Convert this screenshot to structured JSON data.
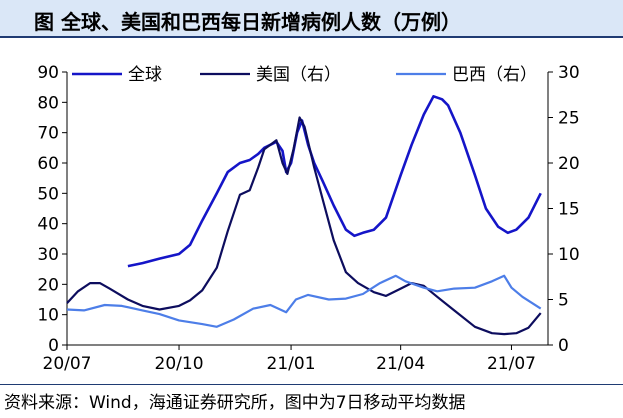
{
  "title": "图  全球、美国和巴西每日新增病例人数（万例）",
  "source": "资料来源：Wind，海通证券研究所，图中为7日移动平均数据",
  "chart_data": {
    "type": "line",
    "title": "全球、美国和巴西每日新增病例人数（万例）",
    "y_left": {
      "ylim": [
        0,
        90
      ],
      "ticks": [
        "0",
        "10",
        "20",
        "30",
        "40",
        "50",
        "60",
        "70",
        "80",
        "90"
      ]
    },
    "y_right": {
      "ylim": [
        0,
        30
      ],
      "ticks": [
        "0",
        "5",
        "10",
        "15",
        "20",
        "25",
        "30"
      ]
    },
    "x_ticks": [
      "20/07",
      "20/10",
      "21/01",
      "21/04",
      "21/07"
    ],
    "x_range": [
      "2020-07-01",
      "2021-07-31"
    ],
    "legend": [
      "全球",
      "美国（右）",
      "巴西（右）"
    ],
    "legend_position": "top",
    "grid": false,
    "series": [
      {
        "name": "全球",
        "axis": "left",
        "color": "#1515c8",
        "points": [
          [
            "2020-08-20",
            26
          ],
          [
            "2020-09-01",
            27
          ],
          [
            "2020-09-15",
            28.5
          ],
          [
            "2020-10-01",
            30
          ],
          [
            "2020-10-10",
            33
          ],
          [
            "2020-10-20",
            41
          ],
          [
            "2020-11-01",
            50
          ],
          [
            "2020-11-10",
            57
          ],
          [
            "2020-11-20",
            60
          ],
          [
            "2020-11-28",
            61
          ],
          [
            "2020-12-05",
            63
          ],
          [
            "2020-12-10",
            65
          ],
          [
            "2020-12-15",
            66
          ],
          [
            "2020-12-20",
            67
          ],
          [
            "2020-12-25",
            64
          ],
          [
            "2020-12-28",
            57
          ],
          [
            "2021-01-01",
            60
          ],
          [
            "2021-01-06",
            70
          ],
          [
            "2021-01-10",
            74
          ],
          [
            "2021-01-15",
            66
          ],
          [
            "2021-01-20",
            60
          ],
          [
            "2021-01-27",
            54
          ],
          [
            "2021-02-05",
            46
          ],
          [
            "2021-02-15",
            38
          ],
          [
            "2021-02-22",
            36
          ],
          [
            "2021-03-01",
            37
          ],
          [
            "2021-03-10",
            38
          ],
          [
            "2021-03-20",
            42
          ],
          [
            "2021-04-01",
            56
          ],
          [
            "2021-04-10",
            66
          ],
          [
            "2021-04-20",
            76
          ],
          [
            "2021-04-28",
            82
          ],
          [
            "2021-05-05",
            81
          ],
          [
            "2021-05-10",
            79
          ],
          [
            "2021-05-20",
            70
          ],
          [
            "2021-06-01",
            56
          ],
          [
            "2021-06-10",
            45
          ],
          [
            "2021-06-20",
            39
          ],
          [
            "2021-06-28",
            37
          ],
          [
            "2021-07-05",
            38
          ],
          [
            "2021-07-15",
            42
          ],
          [
            "2021-07-25",
            50
          ]
        ]
      },
      {
        "name": "美国（右）",
        "axis": "right",
        "color": "#0d0d5e",
        "points": [
          [
            "2020-07-01",
            4.6
          ],
          [
            "2020-07-10",
            5.9
          ],
          [
            "2020-07-20",
            6.8
          ],
          [
            "2020-07-28",
            6.8
          ],
          [
            "2020-08-05",
            6.2
          ],
          [
            "2020-08-20",
            5.0
          ],
          [
            "2020-09-01",
            4.3
          ],
          [
            "2020-09-15",
            3.9
          ],
          [
            "2020-10-01",
            4.3
          ],
          [
            "2020-10-10",
            4.9
          ],
          [
            "2020-10-20",
            6.0
          ],
          [
            "2020-11-01",
            8.5
          ],
          [
            "2020-11-10",
            12.5
          ],
          [
            "2020-11-20",
            16.5
          ],
          [
            "2020-11-28",
            17.0
          ],
          [
            "2020-12-05",
            19.5
          ],
          [
            "2020-12-10",
            21.5
          ],
          [
            "2020-12-15",
            22.0
          ],
          [
            "2020-12-20",
            22.5
          ],
          [
            "2020-12-25",
            20.0
          ],
          [
            "2020-12-29",
            18.8
          ],
          [
            "2021-01-03",
            21.5
          ],
          [
            "2021-01-08",
            25.0
          ],
          [
            "2021-01-12",
            24.0
          ],
          [
            "2021-01-20",
            19.5
          ],
          [
            "2021-01-28",
            15.5
          ],
          [
            "2021-02-05",
            11.5
          ],
          [
            "2021-02-15",
            8.0
          ],
          [
            "2021-02-25",
            6.8
          ],
          [
            "2021-03-10",
            5.8
          ],
          [
            "2021-03-20",
            5.4
          ],
          [
            "2021-04-01",
            6.2
          ],
          [
            "2021-04-10",
            6.8
          ],
          [
            "2021-04-20",
            6.5
          ],
          [
            "2021-05-01",
            5.3
          ],
          [
            "2021-05-15",
            3.8
          ],
          [
            "2021-06-01",
            2.0
          ],
          [
            "2021-06-15",
            1.3
          ],
          [
            "2021-06-25",
            1.2
          ],
          [
            "2021-07-05",
            1.3
          ],
          [
            "2021-07-15",
            1.9
          ],
          [
            "2021-07-25",
            3.5
          ]
        ]
      },
      {
        "name": "巴西（右）",
        "axis": "right",
        "color": "#4d7ee8",
        "points": [
          [
            "2020-07-01",
            3.9
          ],
          [
            "2020-07-15",
            3.8
          ],
          [
            "2020-08-01",
            4.4
          ],
          [
            "2020-08-15",
            4.3
          ],
          [
            "2020-09-01",
            3.8
          ],
          [
            "2020-09-15",
            3.4
          ],
          [
            "2020-10-01",
            2.7
          ],
          [
            "2020-10-20",
            2.3
          ],
          [
            "2020-11-01",
            2.0
          ],
          [
            "2020-11-15",
            2.8
          ],
          [
            "2020-12-01",
            4.0
          ],
          [
            "2020-12-15",
            4.4
          ],
          [
            "2020-12-28",
            3.6
          ],
          [
            "2021-01-05",
            5.0
          ],
          [
            "2021-01-15",
            5.5
          ],
          [
            "2021-02-01",
            5.0
          ],
          [
            "2021-02-15",
            5.1
          ],
          [
            "2021-03-01",
            5.6
          ],
          [
            "2021-03-15",
            6.8
          ],
          [
            "2021-03-28",
            7.6
          ],
          [
            "2021-04-05",
            7.0
          ],
          [
            "2021-04-20",
            6.3
          ],
          [
            "2021-05-01",
            5.9
          ],
          [
            "2021-05-15",
            6.2
          ],
          [
            "2021-06-01",
            6.3
          ],
          [
            "2021-06-15",
            7.0
          ],
          [
            "2021-06-25",
            7.6
          ],
          [
            "2021-07-01",
            6.3
          ],
          [
            "2021-07-10",
            5.3
          ],
          [
            "2021-07-25",
            4.0
          ]
        ]
      }
    ]
  }
}
